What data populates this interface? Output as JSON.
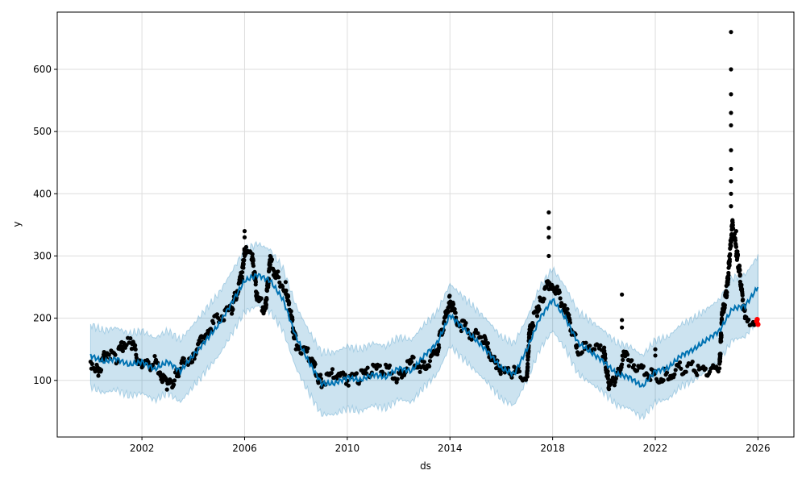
{
  "chart_data": {
    "type": "line",
    "title": "",
    "xlabel": "ds",
    "ylabel": "y",
    "xlim": [
      1998.7,
      2027.4
    ],
    "ylim": [
      9,
      692
    ],
    "grid": true,
    "x_ticks": [
      2002,
      2006,
      2010,
      2014,
      2018,
      2022,
      2026
    ],
    "y_ticks": [
      100,
      200,
      300,
      400,
      500,
      600
    ],
    "colors": {
      "forecast": "#0072B2",
      "band": "#0072B2",
      "observed": "#000000",
      "future": "#FF0000",
      "grid": "#dddddd"
    },
    "forecast": {
      "name": "yhat",
      "x": [
        2000.0,
        2000.5,
        2001,
        2001.5,
        2002,
        2002.5,
        2003,
        2003.5,
        2004,
        2004.5,
        2005,
        2005.5,
        2006,
        2006.5,
        2007,
        2007.5,
        2008,
        2008.5,
        2009,
        2009.5,
        2010,
        2010.5,
        2011,
        2011.5,
        2012,
        2012.5,
        2013,
        2013.5,
        2014,
        2014.5,
        2015,
        2015.5,
        2016,
        2016.5,
        2017,
        2017.5,
        2018,
        2018.5,
        2019,
        2019.5,
        2020,
        2020.5,
        2021,
        2021.5,
        2022,
        2022.5,
        2023,
        2023.5,
        2024,
        2024.5,
        2025,
        2025.5,
        2026
      ],
      "y": [
        140,
        130,
        135,
        125,
        130,
        118,
        130,
        115,
        140,
        165,
        190,
        225,
        260,
        270,
        260,
        230,
        170,
        130,
        95,
        95,
        105,
        100,
        110,
        105,
        120,
        115,
        140,
        160,
        205,
        185,
        165,
        145,
        120,
        110,
        150,
        200,
        230,
        200,
        160,
        145,
        130,
        110,
        105,
        90,
        115,
        120,
        140,
        150,
        165,
        180,
        215,
        220,
        250
      ],
      "band_halfwidth": 50
    },
    "observed": {
      "name": "y",
      "x": [
        2000,
        2000.3,
        2000.6,
        2001,
        2001.3,
        2001.6,
        2002,
        2002.5,
        2003,
        2003.3,
        2003.6,
        2004,
        2004.5,
        2005,
        2005.5,
        2005.9,
        2006,
        2006.3,
        2006.5,
        2006.8,
        2007,
        2007.3,
        2007.6,
        2008,
        2008.5,
        2009,
        2009.5,
        2010,
        2010.5,
        2011,
        2011.5,
        2012,
        2012.5,
        2013,
        2013.5,
        2014,
        2014.3,
        2014.8,
        2015.3,
        2015.8,
        2016,
        2016.5,
        2017,
        2017.1,
        2017.5,
        2017.9,
        2018,
        2018.5,
        2019,
        2019.5,
        2020,
        2020.2,
        2020.5,
        2020.8,
        2021,
        2021.5,
        2022,
        2022.5,
        2023,
        2023.5,
        2024,
        2024.5,
        2024.6,
        2024.8,
        2025,
        2025.2,
        2025.5,
        2025.9
      ],
      "y": [
        130,
        115,
        145,
        135,
        160,
        160,
        120,
        130,
        90,
        105,
        130,
        140,
        180,
        200,
        215,
        270,
        310,
        295,
        230,
        215,
        290,
        265,
        250,
        160,
        140,
        95,
        110,
        100,
        105,
        115,
        120,
        105,
        130,
        120,
        150,
        230,
        195,
        175,
        165,
        125,
        110,
        115,
        105,
        180,
        225,
        260,
        255,
        215,
        150,
        150,
        145,
        90,
        105,
        140,
        130,
        120,
        105,
        110,
        120,
        120,
        110,
        120,
        200,
        250,
        350,
        300,
        200,
        195
      ]
    },
    "outliers": {
      "x": [
        2024.95,
        2024.95,
        2024.95,
        2024.95,
        2024.95,
        2024.95,
        2024.95,
        2024.95,
        2024.95,
        2024.95,
        2025.15,
        2025.15,
        2017.85,
        2017.85,
        2017.85,
        2017.85,
        2006.0,
        2006.0,
        2020.7,
        2020.7,
        2020.7,
        2022.0,
        2022.0
      ],
      "y": [
        660,
        600,
        560,
        530,
        510,
        470,
        440,
        420,
        400,
        380,
        340,
        300,
        370,
        345,
        330,
        300,
        340,
        330,
        238,
        197,
        185,
        150,
        140
      ]
    },
    "future_points": {
      "x": [
        2025.95,
        2026.0,
        2025.97
      ],
      "y": [
        195,
        190,
        198
      ]
    }
  }
}
